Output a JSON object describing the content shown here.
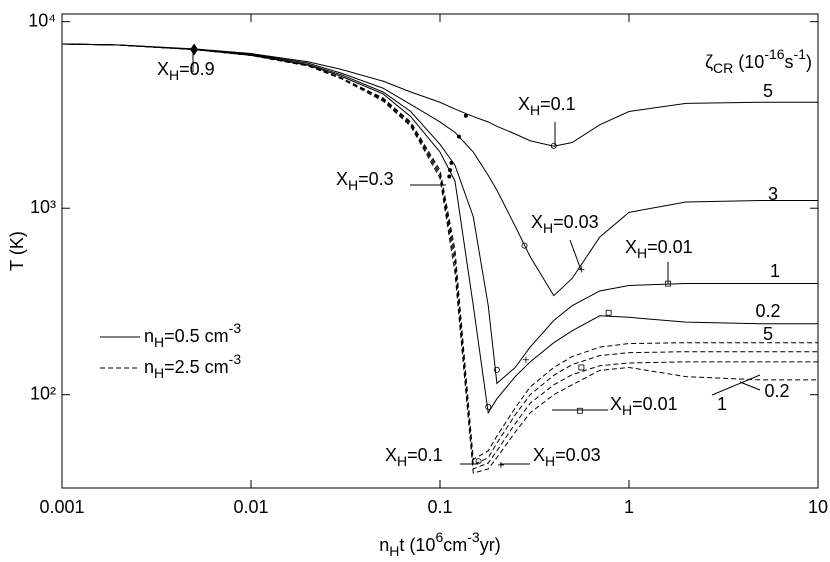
{
  "chart_data": {
    "type": "line",
    "log_x": true,
    "log_y": true,
    "xlim": [
      0.001,
      10
    ],
    "ylim": [
      31.6,
      11000
    ],
    "xticks": [
      0.001,
      0.01,
      0.1,
      1,
      10
    ],
    "yticks": [
      {
        "value": 100,
        "label": "10²"
      },
      {
        "value": 1000,
        "label": "10³"
      },
      {
        "value": 10000,
        "label": "10⁴"
      }
    ],
    "x_label": {
      "parts": [
        {
          "t": "n"
        },
        {
          "t": "H",
          "sub": true
        },
        {
          "t": "t (10"
        },
        {
          "t": "6",
          "sup": true
        },
        {
          "t": "cm"
        },
        {
          "t": "-3",
          "sup": true
        },
        {
          "t": "yr)"
        }
      ]
    },
    "y_label": "T (K)",
    "curve_title": {
      "parts": [
        {
          "t": "ζ"
        },
        {
          "t": "CR",
          "sub": true
        },
        {
          "t": " (10"
        },
        {
          "t": "-16",
          "sup": true
        },
        {
          "t": "s"
        },
        {
          "t": "-1",
          "sup": true
        },
        {
          "t": ")"
        }
      ]
    },
    "legend_corner": "center left",
    "legend": [
      {
        "dash": false,
        "parts": [
          {
            "t": "n"
          },
          {
            "t": "H",
            "sub": true
          },
          {
            "t": "=0.5 cm"
          },
          {
            "t": "-3",
            "sup": true
          }
        ]
      },
      {
        "dash": true,
        "parts": [
          {
            "t": "n"
          },
          {
            "t": "H",
            "sub": true
          },
          {
            "t": "=2.5 cm"
          },
          {
            "t": "-3",
            "sup": true
          }
        ]
      }
    ],
    "x": [
      0.001,
      0.002,
      0.005,
      0.01,
      0.02,
      0.03,
      0.05,
      0.07,
      0.1,
      0.12,
      0.15,
      0.18,
      0.2,
      0.25,
      0.3,
      0.4,
      0.5,
      0.7,
      1,
      2,
      5,
      10
    ],
    "series": [
      {
        "label": "5",
        "dash": false,
        "color": "#000000",
        "values": [
          7600,
          7500,
          7150,
          6750,
          6100,
          5550,
          4800,
          4200,
          3700,
          3400,
          3100,
          2900,
          2750,
          2500,
          2300,
          2150,
          2250,
          2800,
          3300,
          3650,
          3700,
          3700
        ]
      },
      {
        "label": "3",
        "dash": false,
        "color": "#000000",
        "values": [
          7600,
          7500,
          7100,
          6700,
          6000,
          5300,
          4400,
          3600,
          2900,
          2550,
          2000,
          1500,
          1250,
          800,
          550,
          340,
          420,
          700,
          950,
          1080,
          1100,
          1100
        ]
      },
      {
        "label": "1",
        "dash": false,
        "color": "#000000",
        "values": [
          7600,
          7500,
          7100,
          6650,
          5900,
          5200,
          4200,
          3300,
          2200,
          1700,
          900,
          300,
          115,
          140,
          180,
          250,
          300,
          360,
          385,
          395,
          395,
          395
        ]
      },
      {
        "label": "0.2",
        "dash": false,
        "color": "#000000",
        "values": [
          7600,
          7500,
          7100,
          6600,
          5850,
          5100,
          4100,
          3100,
          2000,
          1400,
          300,
          80,
          95,
          125,
          150,
          190,
          220,
          265,
          260,
          245,
          240,
          240
        ]
      },
      {
        "label": "5",
        "dash": true,
        "color": "#000000",
        "values": [
          7600,
          7500,
          7100,
          6600,
          5800,
          5000,
          3900,
          2900,
          1600,
          600,
          45,
          50,
          60,
          85,
          110,
          140,
          160,
          180,
          188,
          190,
          190,
          190
        ]
      },
      {
        "dash": true,
        "color": "#000000",
        "values": [
          7600,
          7500,
          7100,
          6600,
          5800,
          5000,
          3850,
          2850,
          1550,
          550,
          42,
          46,
          55,
          78,
          100,
          127,
          145,
          162,
          168,
          170,
          170,
          170
        ]
      },
      {
        "label": "1",
        "dash": true,
        "color": "#000000",
        "values": [
          7600,
          7500,
          7100,
          6600,
          5800,
          5000,
          3800,
          2800,
          1500,
          500,
          40,
          43,
          50,
          70,
          90,
          113,
          128,
          143,
          148,
          150,
          150,
          150
        ]
      },
      {
        "label": "0.2",
        "dash": true,
        "color": "#000000",
        "values": [
          7600,
          7500,
          7100,
          6600,
          5800,
          4950,
          3750,
          2750,
          1450,
          450,
          38,
          40,
          46,
          63,
          80,
          100,
          113,
          135,
          140,
          125,
          120,
          120
        ]
      }
    ],
    "markers": [
      {
        "x": 0.005,
        "y": 7100,
        "symbol": "diamond"
      },
      {
        "x": 0.4,
        "y": 2160,
        "symbol": "circle"
      },
      {
        "x": 0.137,
        "y": 3130,
        "symbol": "dot"
      },
      {
        "x": 0.126,
        "y": 2420,
        "symbol": "dot"
      },
      {
        "x": 0.115,
        "y": 1750,
        "symbol": "dot"
      },
      {
        "x": 0.113,
        "y": 1600,
        "symbol": "dot"
      },
      {
        "x": 0.112,
        "y": 1480,
        "symbol": "dot"
      },
      {
        "x": 0.28,
        "y": 630,
        "symbol": "circle"
      },
      {
        "x": 0.56,
        "y": 470,
        "symbol": "cross"
      },
      {
        "x": 1.61,
        "y": 394,
        "symbol": "square"
      },
      {
        "x": 0.2,
        "y": 136,
        "symbol": "circle"
      },
      {
        "x": 0.285,
        "y": 154,
        "symbol": "cross"
      },
      {
        "x": 0.78,
        "y": 275,
        "symbol": "square"
      },
      {
        "x": 0.18,
        "y": 86,
        "symbol": "circle"
      },
      {
        "x": 0.16,
        "y": 44,
        "symbol": "circle"
      },
      {
        "x": 0.21,
        "y": 42,
        "symbol": "cross"
      },
      {
        "x": 0.56,
        "y": 140,
        "symbol": "square"
      },
      {
        "x": 0.55,
        "y": 82,
        "symbol": "square"
      }
    ],
    "annotations": [
      {
        "parts": [
          {
            "t": "X"
          },
          {
            "t": "H",
            "sub": true
          },
          {
            "t": "=0.9"
          }
        ]
      },
      {
        "parts": [
          {
            "t": "X"
          },
          {
            "t": "H",
            "sub": true
          },
          {
            "t": "=0.1"
          }
        ]
      },
      {
        "parts": [
          {
            "t": "X"
          },
          {
            "t": "H",
            "sub": true
          },
          {
            "t": "=0.3"
          }
        ]
      },
      {
        "parts": [
          {
            "t": "X"
          },
          {
            "t": "H",
            "sub": true
          },
          {
            "t": "=0.03"
          }
        ]
      },
      {
        "parts": [
          {
            "t": "X"
          },
          {
            "t": "H",
            "sub": true
          },
          {
            "t": "=0.01"
          }
        ]
      },
      {
        "parts": [
          {
            "t": "X"
          },
          {
            "t": "H",
            "sub": true
          },
          {
            "t": "=0.01"
          }
        ]
      },
      {
        "parts": [
          {
            "t": "X"
          },
          {
            "t": "H",
            "sub": true
          },
          {
            "t": "=0.1"
          }
        ]
      },
      {
        "parts": [
          {
            "t": "X"
          },
          {
            "t": "H",
            "sub": true
          },
          {
            "t": "=0.03"
          }
        ]
      }
    ]
  }
}
